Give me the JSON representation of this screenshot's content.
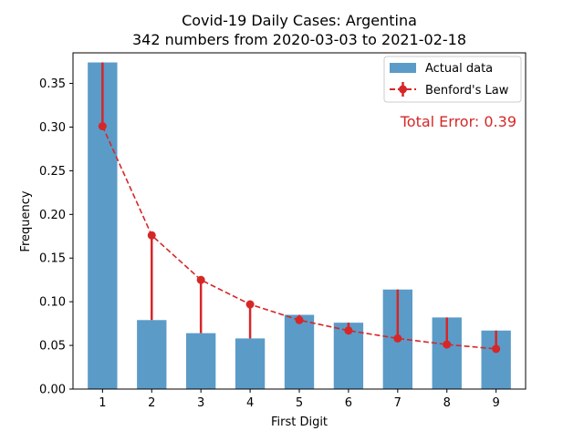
{
  "chart_data": {
    "type": "bar",
    "title": "Covid-19 Daily Cases: Argentina",
    "subtitle": "342 numbers from 2020-03-03 to 2021-02-18",
    "xlabel": "First Digit",
    "ylabel": "Frequency",
    "categories": [
      "1",
      "2",
      "3",
      "4",
      "5",
      "6",
      "7",
      "8",
      "9"
    ],
    "ylim": [
      0,
      0.385
    ],
    "yticks": [
      "0.00",
      "0.05",
      "0.10",
      "0.15",
      "0.20",
      "0.25",
      "0.30",
      "0.35"
    ],
    "series": [
      {
        "name": "Actual data",
        "type": "bar",
        "color": "#5b9bc8",
        "values": [
          0.374,
          0.079,
          0.064,
          0.058,
          0.085,
          0.076,
          0.114,
          0.082,
          0.067
        ]
      },
      {
        "name": "Benford's Law",
        "type": "line",
        "style": "dashed",
        "marker": "circle",
        "color": "#d62728",
        "values": [
          0.301,
          0.176,
          0.125,
          0.097,
          0.079,
          0.067,
          0.058,
          0.051,
          0.046
        ]
      }
    ],
    "error_bars": "vertical red lines connecting each Benford value to the actual value",
    "annotation": "Total Error: 0.39",
    "annotation_color": "#d62728",
    "legend_position": "top-right",
    "grid": false
  }
}
